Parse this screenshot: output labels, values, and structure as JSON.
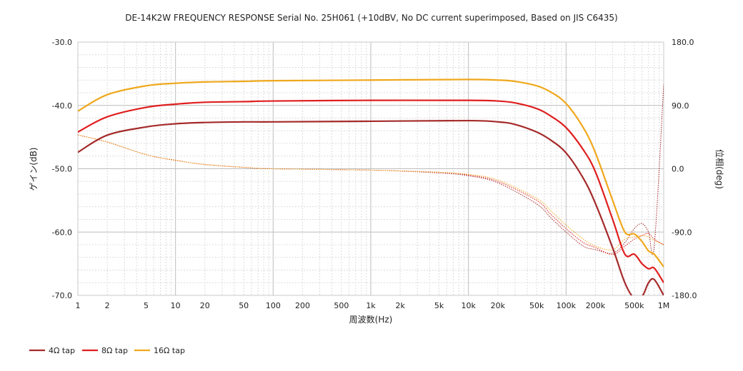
{
  "chart_data": {
    "type": "line",
    "title": "DE-14K2W FREQUENCY RESPONSE Serial No. 25H061 (+10dBV,  No DC current superimposed,  Based on JIS C6435)",
    "xlabel": "周波数(Hz)",
    "ylabel": "ゲイン(dB)",
    "y2label": "位相(deg)",
    "x_scale": "log",
    "xlim": [
      1,
      1000000
    ],
    "ylim": [
      -70,
      -30
    ],
    "y2lim": [
      -180,
      180
    ],
    "x_ticks": [
      {
        "v": 1,
        "label": "1"
      },
      {
        "v": 2,
        "label": "2"
      },
      {
        "v": 5,
        "label": "5"
      },
      {
        "v": 10,
        "label": "10"
      },
      {
        "v": 20,
        "label": "20"
      },
      {
        "v": 50,
        "label": "50"
      },
      {
        "v": 100,
        "label": "100"
      },
      {
        "v": 200,
        "label": "200"
      },
      {
        "v": 500,
        "label": "500"
      },
      {
        "v": 1000,
        "label": "1k"
      },
      {
        "v": 2000,
        "label": "2k"
      },
      {
        "v": 5000,
        "label": "5k"
      },
      {
        "v": 10000,
        "label": "10k"
      },
      {
        "v": 20000,
        "label": "20k"
      },
      {
        "v": 50000,
        "label": "50k"
      },
      {
        "v": 100000,
        "label": "100k"
      },
      {
        "v": 200000,
        "label": "200k"
      },
      {
        "v": 500000,
        "label": "500k"
      },
      {
        "v": 1000000,
        "label": "1M"
      }
    ],
    "y_ticks": [
      {
        "v": -30,
        "label": "-30.0"
      },
      {
        "v": -40,
        "label": "-40.0"
      },
      {
        "v": -50,
        "label": "-50.0"
      },
      {
        "v": -60,
        "label": "-60.0"
      },
      {
        "v": -70,
        "label": "-70.0"
      }
    ],
    "y2_ticks": [
      {
        "v": 180,
        "label": "180.0"
      },
      {
        "v": 90,
        "label": "90.0"
      },
      {
        "v": 0,
        "label": "0.0"
      },
      {
        "v": -90,
        "label": "-90.0"
      },
      {
        "v": -180,
        "label": "-180.0"
      }
    ],
    "grid": true,
    "legend_position": "bottom-left",
    "series": [
      {
        "name": "4Ω tap",
        "color": "#a52a2a",
        "gain": {
          "x": [
            1,
            2,
            5,
            10,
            20,
            50,
            100,
            1000,
            10000,
            20000,
            30000,
            50000,
            70000,
            100000,
            150000,
            200000,
            300000,
            400000,
            500000,
            600000,
            700000,
            800000,
            1000000
          ],
          "y": [
            -47.4,
            -44.7,
            -43.4,
            -42.9,
            -42.7,
            -42.6,
            -42.6,
            -42.5,
            -42.4,
            -42.6,
            -43.0,
            -44.2,
            -45.5,
            -47.5,
            -51.5,
            -55.5,
            -62.5,
            -68,
            -70.5,
            -70.2,
            -68,
            -67.5,
            -70
          ]
        },
        "phase": {
          "x": [
            1,
            2,
            5,
            10,
            20,
            50,
            100,
            1000,
            5000,
            10000,
            20000,
            50000,
            70000,
            100000,
            150000,
            200000,
            300000,
            400000,
            500000,
            600000,
            700000,
            800000,
            1000000
          ],
          "y": [
            48,
            38,
            20,
            12,
            6,
            2,
            0,
            -2,
            -6,
            -10,
            -20,
            -50,
            -70,
            -90,
            -110,
            -115,
            -120,
            -105,
            -85,
            -78,
            -90,
            -110,
            120
          ]
        }
      },
      {
        "name": "8Ω tap",
        "color": "#e01e1e",
        "gain": {
          "x": [
            1,
            2,
            5,
            10,
            20,
            50,
            100,
            1000,
            10000,
            20000,
            30000,
            50000,
            70000,
            100000,
            150000,
            200000,
            300000,
            400000,
            500000,
            600000,
            700000,
            800000,
            1000000
          ],
          "y": [
            -44.2,
            -41.8,
            -40.3,
            -39.8,
            -39.5,
            -39.4,
            -39.3,
            -39.2,
            -39.2,
            -39.3,
            -39.6,
            -40.5,
            -41.7,
            -43.5,
            -47,
            -50.5,
            -58,
            -63.5,
            -63.5,
            -65,
            -65.8,
            -65.7,
            -68
          ]
        },
        "phase": {
          "x": [
            1,
            2,
            5,
            10,
            20,
            50,
            100,
            1000,
            5000,
            10000,
            20000,
            50000,
            70000,
            100000,
            150000,
            200000,
            300000,
            400000,
            500000,
            600000,
            700000,
            800000,
            1000000
          ],
          "y": [
            48,
            38,
            20,
            12,
            6,
            2,
            0,
            -2,
            -5,
            -9,
            -18,
            -45,
            -65,
            -85,
            -105,
            -112,
            -122,
            -110,
            -100,
            -95,
            -92,
            -100,
            -108
          ]
        }
      },
      {
        "name": "16Ω tap",
        "color": "#f0a81c",
        "gain": {
          "x": [
            1,
            2,
            5,
            10,
            20,
            50,
            100,
            1000,
            10000,
            20000,
            30000,
            50000,
            70000,
            100000,
            150000,
            200000,
            300000,
            400000,
            500000,
            600000,
            700000,
            800000,
            1000000
          ],
          "y": [
            -40.9,
            -38.3,
            -36.9,
            -36.5,
            -36.3,
            -36.2,
            -36.1,
            -36.0,
            -35.9,
            -36.0,
            -36.2,
            -36.9,
            -37.9,
            -39.7,
            -43.5,
            -47.5,
            -55,
            -60,
            -60.3,
            -61.5,
            -63,
            -63.5,
            -65.5
          ]
        },
        "phase": {
          "x": [
            1,
            2,
            5,
            10,
            20,
            50,
            100,
            1000,
            5000,
            10000,
            20000,
            50000,
            70000,
            100000,
            150000,
            200000,
            300000,
            400000,
            500000,
            600000,
            700000,
            800000,
            1000000
          ],
          "y": [
            48,
            38,
            20,
            12,
            6,
            2,
            0,
            -2,
            -5,
            -8,
            -16,
            -42,
            -60,
            -80,
            -100,
            -110,
            -115,
            -100,
            -97,
            -95,
            -97,
            -102,
            -108
          ]
        }
      }
    ]
  }
}
